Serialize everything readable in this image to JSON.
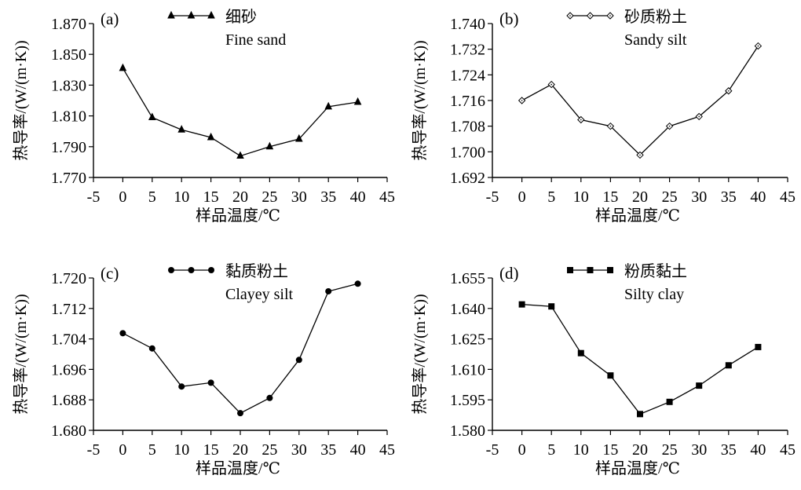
{
  "figure": {
    "line_color": "#000000",
    "background": "#ffffff"
  },
  "chart_data": [
    {
      "id": "a",
      "type": "line",
      "panel_label": "(a)",
      "legend_cn": "细砂",
      "legend_en": "Fine sand",
      "marker": "triangle",
      "xlabel": "样品温度/℃",
      "ylabel": "热导率/(W/(m·K))",
      "xlim": [
        -5,
        45
      ],
      "xticks": [
        -5,
        0,
        5,
        10,
        15,
        20,
        25,
        30,
        35,
        40,
        45
      ],
      "ylim": [
        1.77,
        1.87
      ],
      "yticks": [
        "1.770",
        "1.790",
        "1.810",
        "1.830",
        "1.850",
        "1.870"
      ],
      "x": [
        0,
        5,
        10,
        15,
        20,
        25,
        30,
        35,
        40
      ],
      "y": [
        1.841,
        1.809,
        1.801,
        1.796,
        1.784,
        1.79,
        1.795,
        1.816,
        1.819
      ]
    },
    {
      "id": "b",
      "type": "line",
      "panel_label": "(b)",
      "legend_cn": "砂质粉土",
      "legend_en": "Sandy silt",
      "marker": "diamond-open",
      "xlabel": "样品温度/℃",
      "ylabel": "热导率/(W/(m·K))",
      "xlim": [
        -5,
        45
      ],
      "xticks": [
        -5,
        0,
        5,
        10,
        15,
        20,
        25,
        30,
        35,
        40,
        45
      ],
      "ylim": [
        1.692,
        1.74
      ],
      "yticks": [
        "1.692",
        "1.700",
        "1.708",
        "1.716",
        "1.724",
        "1.732",
        "1.740"
      ],
      "x": [
        0,
        5,
        10,
        15,
        20,
        25,
        30,
        35,
        40
      ],
      "y": [
        1.716,
        1.721,
        1.71,
        1.708,
        1.699,
        1.708,
        1.711,
        1.719,
        1.733
      ]
    },
    {
      "id": "c",
      "type": "line",
      "panel_label": "(c)",
      "legend_cn": "黏质粉土",
      "legend_en": "Clayey silt",
      "marker": "circle",
      "xlabel": "样品温度/℃",
      "ylabel": "热导率/(W/(m·K))",
      "xlim": [
        -5,
        45
      ],
      "xticks": [
        -5,
        0,
        5,
        10,
        15,
        20,
        25,
        30,
        35,
        40,
        45
      ],
      "ylim": [
        1.68,
        1.72
      ],
      "yticks": [
        "1.680",
        "1.688",
        "1.696",
        "1.704",
        "1.712",
        "1.720"
      ],
      "x": [
        0,
        5,
        10,
        15,
        20,
        25,
        30,
        35,
        40
      ],
      "y": [
        1.7055,
        1.7015,
        1.6915,
        1.6925,
        1.6845,
        1.6885,
        1.6985,
        1.7165,
        1.7185
      ]
    },
    {
      "id": "d",
      "type": "line",
      "panel_label": "(d)",
      "legend_cn": "粉质黏土",
      "legend_en": "Silty clay",
      "marker": "square",
      "xlabel": "样品温度/℃",
      "ylabel": "热导率/(W/(m·K))",
      "xlim": [
        -5,
        45
      ],
      "xticks": [
        -5,
        0,
        5,
        10,
        15,
        20,
        25,
        30,
        35,
        40,
        45
      ],
      "ylim": [
        1.58,
        1.655
      ],
      "yticks": [
        "1.580",
        "1.595",
        "1.610",
        "1.625",
        "1.640",
        "1.655"
      ],
      "x": [
        0,
        5,
        10,
        15,
        20,
        25,
        30,
        35,
        40
      ],
      "y": [
        1.642,
        1.641,
        1.618,
        1.607,
        1.588,
        1.594,
        1.602,
        1.612,
        1.621
      ]
    }
  ]
}
